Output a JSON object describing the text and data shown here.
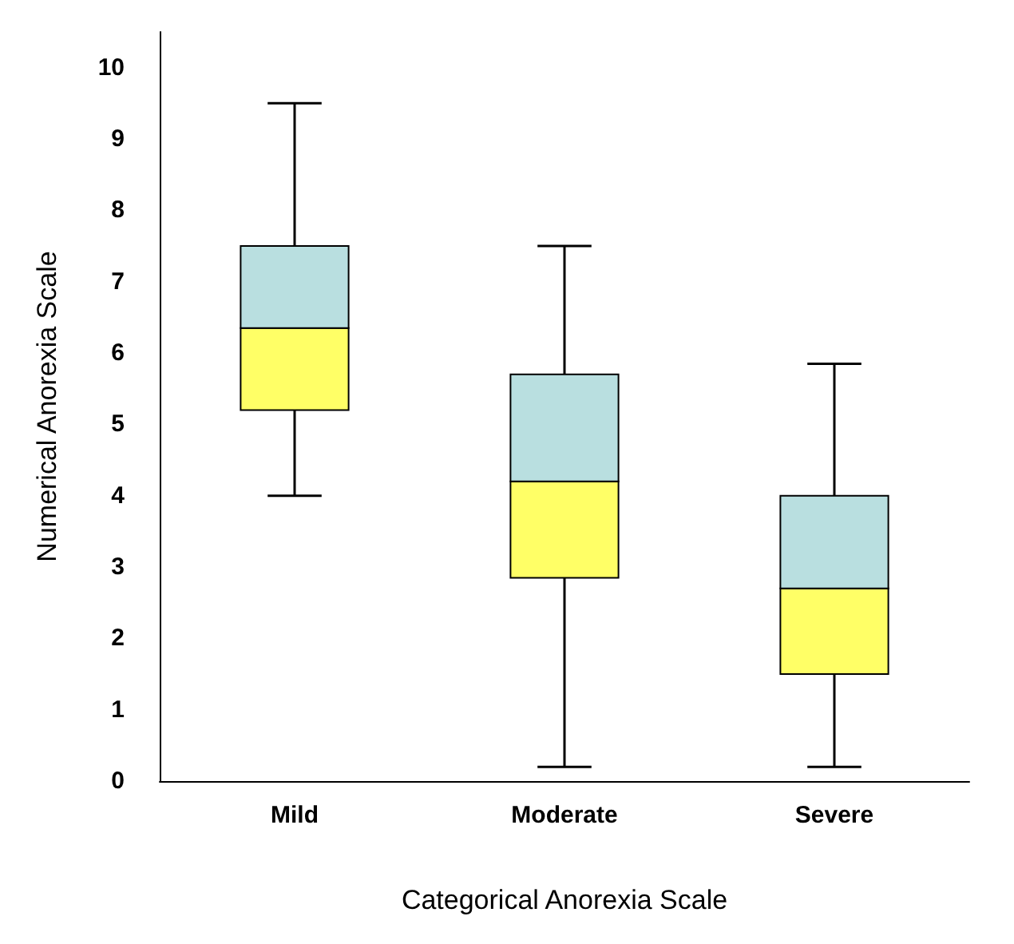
{
  "chart_data": {
    "type": "box",
    "xlabel": "Categorical Anorexia Scale",
    "ylabel": "Numerical Anorexia Scale",
    "categories": [
      "Mild",
      "Moderate",
      "Severe"
    ],
    "boxes": [
      {
        "low": 4.0,
        "q1": 5.2,
        "median": 6.35,
        "q3": 7.5,
        "high": 9.5
      },
      {
        "low": 0.2,
        "q1": 2.85,
        "median": 4.2,
        "q3": 5.7,
        "high": 7.5
      },
      {
        "low": 0.2,
        "q1": 1.5,
        "median": 2.7,
        "q3": 4.0,
        "high": 5.85
      }
    ],
    "colors": [
      "#ffff66",
      "#ffff66",
      "#ffff66"
    ],
    "color": "#b9dfe0",
    "ylim": [
      0,
      10.5
    ],
    "yticks": [
      0,
      1,
      2,
      3,
      4,
      5,
      6,
      7,
      8,
      9,
      10
    ],
    "grid": false
  }
}
